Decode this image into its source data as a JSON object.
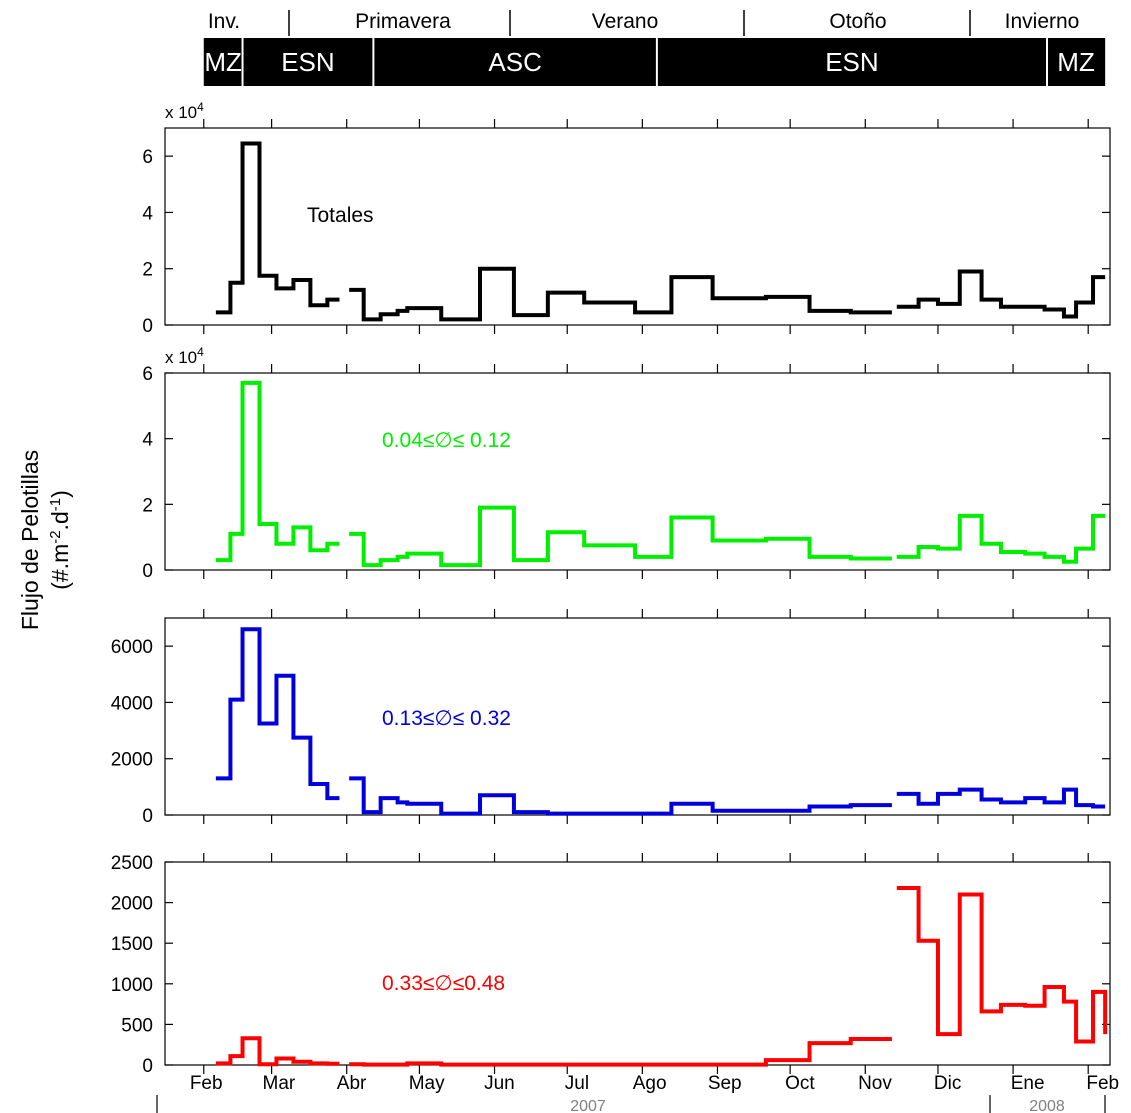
{
  "figure": {
    "ylabel_line1": "Flujo de Pelotillas",
    "ylabel_line2": "(#.m-2.d-1)",
    "seasons": [
      {
        "label": "Inv."
      },
      {
        "label": "Primavera"
      },
      {
        "label": "Verano"
      },
      {
        "label": "Otoño"
      },
      {
        "label": "Invierno"
      }
    ],
    "regimes": [
      {
        "label": "MZ",
        "start": "2007-02-01",
        "end": "2007-02-17"
      },
      {
        "label": "ESN",
        "start": "2007-02-17",
        "end": "2007-04-12"
      },
      {
        "label": "ASC",
        "start": "2007-04-12",
        "end": "2007-08-07"
      },
      {
        "label": "ESN",
        "start": "2007-08-07",
        "end": "2008-01-15"
      },
      {
        "label": "MZ",
        "start": "2008-01-15",
        "end": "2008-02-08"
      }
    ],
    "months": [
      "Feb",
      "Mar",
      "Abr",
      "May",
      "Jun",
      "Jul",
      "Ago",
      "Sep",
      "Oct",
      "Nov",
      "Dic",
      "Ene",
      "Feb"
    ],
    "years": [
      {
        "label": "2007"
      },
      {
        "label": "2008"
      }
    ],
    "colors": {
      "total": "#000000",
      "small": "#00ee00",
      "medium": "#0000dd",
      "large": "#ff0000"
    }
  },
  "chart_data": [
    {
      "type": "line",
      "step": true,
      "annotation": "Totales",
      "color": "#000000",
      "ylim": [
        0,
        70000
      ],
      "yticks": [
        0,
        20000,
        40000,
        60000
      ],
      "ytick_labels": [
        "0",
        "2",
        "4",
        "6"
      ],
      "y_multiplier_label": "x 10",
      "y_multiplier_exp": "4",
      "series": [
        {
          "segments": [
            [
              [
                "2007-02-06",
                4500
              ],
              [
                "2007-02-12",
                15000
              ],
              [
                "2007-02-17",
                64500
              ],
              [
                "2007-02-24",
                17500
              ],
              [
                "2007-03-03",
                13000
              ],
              [
                "2007-03-10",
                16000
              ],
              [
                "2007-03-17",
                7000
              ],
              [
                "2007-03-24",
                9000
              ],
              [
                "2007-03-29",
                9000
              ]
            ],
            [
              [
                "2007-04-02",
                12500
              ],
              [
                "2007-04-08",
                2000
              ],
              [
                "2007-04-15",
                3800
              ],
              [
                "2007-04-22",
                5000
              ],
              [
                "2007-04-26",
                6000
              ],
              [
                "2007-05-10",
                2000
              ],
              [
                "2007-05-26",
                20000
              ],
              [
                "2007-06-09",
                3500
              ],
              [
                "2007-06-23",
                11500
              ],
              [
                "2007-07-08",
                8000
              ],
              [
                "2007-07-29",
                4500
              ],
              [
                "2007-08-13",
                17000
              ],
              [
                "2007-08-30",
                9500
              ],
              [
                "2007-09-21",
                10000
              ],
              [
                "2007-10-09",
                5000
              ],
              [
                "2007-10-26",
                4500
              ],
              [
                "2007-11-12",
                4500
              ]
            ],
            [
              [
                "2007-11-14",
                6500
              ],
              [
                "2007-11-23",
                9000
              ],
              [
                "2007-12-01",
                7500
              ],
              [
                "2007-12-10",
                19000
              ],
              [
                "2007-12-19",
                9000
              ],
              [
                "2007-12-27",
                6500
              ],
              [
                "2008-01-06",
                6500
              ],
              [
                "2008-01-14",
                5500
              ],
              [
                "2008-01-22",
                3000
              ],
              [
                "2008-01-27",
                8000
              ],
              [
                "2008-02-03",
                17000
              ],
              [
                "2008-02-08",
                17000
              ]
            ]
          ]
        }
      ]
    },
    {
      "type": "line",
      "step": true,
      "annotation": "0.04≤∅≤ 0.12",
      "color": "#00ee00",
      "ylim": [
        0,
        60000
      ],
      "yticks": [
        0,
        20000,
        40000,
        60000
      ],
      "ytick_labels": [
        "0",
        "2",
        "4",
        "6"
      ],
      "y_multiplier_label": "x 10",
      "y_multiplier_exp": "4",
      "series": [
        {
          "segments": [
            [
              [
                "2007-02-06",
                3000
              ],
              [
                "2007-02-12",
                11000
              ],
              [
                "2007-02-17",
                57000
              ],
              [
                "2007-02-24",
                14000
              ],
              [
                "2007-03-03",
                8000
              ],
              [
                "2007-03-10",
                13000
              ],
              [
                "2007-03-17",
                6000
              ],
              [
                "2007-03-24",
                8000
              ],
              [
                "2007-03-29",
                8000
              ]
            ],
            [
              [
                "2007-04-02",
                11000
              ],
              [
                "2007-04-08",
                1500
              ],
              [
                "2007-04-15",
                3000
              ],
              [
                "2007-04-22",
                4000
              ],
              [
                "2007-04-26",
                5000
              ],
              [
                "2007-05-10",
                1500
              ],
              [
                "2007-05-26",
                19000
              ],
              [
                "2007-06-09",
                3000
              ],
              [
                "2007-06-23",
                11500
              ],
              [
                "2007-07-08",
                7500
              ],
              [
                "2007-07-29",
                4000
              ],
              [
                "2007-08-13",
                16000
              ],
              [
                "2007-08-30",
                9000
              ],
              [
                "2007-09-21",
                9500
              ],
              [
                "2007-10-09",
                4000
              ],
              [
                "2007-10-26",
                3500
              ],
              [
                "2007-11-12",
                3500
              ]
            ],
            [
              [
                "2007-11-14",
                4000
              ],
              [
                "2007-11-23",
                7000
              ],
              [
                "2007-12-01",
                6500
              ],
              [
                "2007-12-10",
                16500
              ],
              [
                "2007-12-19",
                8000
              ],
              [
                "2007-12-27",
                5500
              ],
              [
                "2008-01-06",
                5000
              ],
              [
                "2008-01-14",
                4000
              ],
              [
                "2008-01-22",
                2500
              ],
              [
                "2008-01-27",
                6500
              ],
              [
                "2008-02-03",
                16500
              ],
              [
                "2008-02-08",
                16500
              ]
            ]
          ]
        }
      ]
    },
    {
      "type": "line",
      "step": true,
      "annotation": "0.13≤∅≤ 0.32",
      "color": "#0000dd",
      "ylim": [
        0,
        7000
      ],
      "yticks": [
        0,
        2000,
        4000,
        6000
      ],
      "ytick_labels": [
        "0",
        "2000",
        "4000",
        "6000"
      ],
      "series": [
        {
          "segments": [
            [
              [
                "2007-02-06",
                1300
              ],
              [
                "2007-02-12",
                4100
              ],
              [
                "2007-02-17",
                6600
              ],
              [
                "2007-02-24",
                3250
              ],
              [
                "2007-03-03",
                4950
              ],
              [
                "2007-03-10",
                2750
              ],
              [
                "2007-03-17",
                1100
              ],
              [
                "2007-03-24",
                600
              ],
              [
                "2007-03-29",
                600
              ]
            ],
            [
              [
                "2007-04-02",
                1300
              ],
              [
                "2007-04-08",
                100
              ],
              [
                "2007-04-15",
                600
              ],
              [
                "2007-04-22",
                450
              ],
              [
                "2007-04-26",
                400
              ],
              [
                "2007-05-10",
                50
              ],
              [
                "2007-05-26",
                700
              ],
              [
                "2007-06-09",
                100
              ],
              [
                "2007-06-23",
                50
              ],
              [
                "2007-07-08",
                50
              ],
              [
                "2007-07-29",
                50
              ],
              [
                "2007-08-13",
                400
              ],
              [
                "2007-08-30",
                150
              ],
              [
                "2007-09-21",
                150
              ],
              [
                "2007-10-09",
                300
              ],
              [
                "2007-10-26",
                350
              ],
              [
                "2007-11-12",
                350
              ]
            ],
            [
              [
                "2007-11-14",
                750
              ],
              [
                "2007-11-23",
                400
              ],
              [
                "2007-12-01",
                750
              ],
              [
                "2007-12-10",
                900
              ],
              [
                "2007-12-19",
                550
              ],
              [
                "2007-12-27",
                450
              ],
              [
                "2008-01-06",
                600
              ],
              [
                "2008-01-14",
                450
              ],
              [
                "2008-01-22",
                900
              ],
              [
                "2008-01-27",
                350
              ],
              [
                "2008-02-03",
                300
              ],
              [
                "2008-02-08",
                300
              ]
            ]
          ]
        }
      ]
    },
    {
      "type": "line",
      "step": true,
      "annotation": "0.33≤∅≤0.48",
      "color": "#ff0000",
      "ylim": [
        0,
        2500
      ],
      "yticks": [
        0,
        500,
        1000,
        1500,
        2000,
        2500
      ],
      "ytick_labels": [
        "0",
        "500",
        "1000",
        "1500",
        "2000",
        "2500"
      ],
      "series": [
        {
          "segments": [
            [
              [
                "2007-02-06",
                20
              ],
              [
                "2007-02-12",
                110
              ],
              [
                "2007-02-17",
                330
              ],
              [
                "2007-02-24",
                10
              ],
              [
                "2007-03-03",
                80
              ],
              [
                "2007-03-10",
                40
              ],
              [
                "2007-03-17",
                20
              ],
              [
                "2007-03-24",
                15
              ],
              [
                "2007-03-29",
                15
              ]
            ],
            [
              [
                "2007-04-02",
                10
              ],
              [
                "2007-04-08",
                5
              ],
              [
                "2007-04-15",
                5
              ],
              [
                "2007-04-22",
                5
              ],
              [
                "2007-04-26",
                20
              ],
              [
                "2007-05-10",
                5
              ],
              [
                "2007-05-26",
                5
              ],
              [
                "2007-06-09",
                5
              ],
              [
                "2007-06-23",
                5
              ],
              [
                "2007-07-08",
                5
              ],
              [
                "2007-07-29",
                5
              ],
              [
                "2007-08-13",
                5
              ],
              [
                "2007-08-30",
                5
              ],
              [
                "2007-09-21",
                60
              ],
              [
                "2007-10-09",
                270
              ],
              [
                "2007-10-26",
                320
              ],
              [
                "2007-11-12",
                320
              ]
            ],
            [
              [
                "2007-11-14",
                2180
              ],
              [
                "2007-11-23",
                1530
              ],
              [
                "2007-12-01",
                380
              ],
              [
                "2007-12-10",
                2100
              ],
              [
                "2007-12-19",
                660
              ],
              [
                "2007-12-27",
                740
              ],
              [
                "2008-01-06",
                730
              ],
              [
                "2008-01-14",
                960
              ],
              [
                "2008-01-22",
                780
              ],
              [
                "2008-01-27",
                290
              ],
              [
                "2008-02-03",
                900
              ],
              [
                "2008-02-08",
                380
              ]
            ]
          ]
        }
      ]
    }
  ]
}
